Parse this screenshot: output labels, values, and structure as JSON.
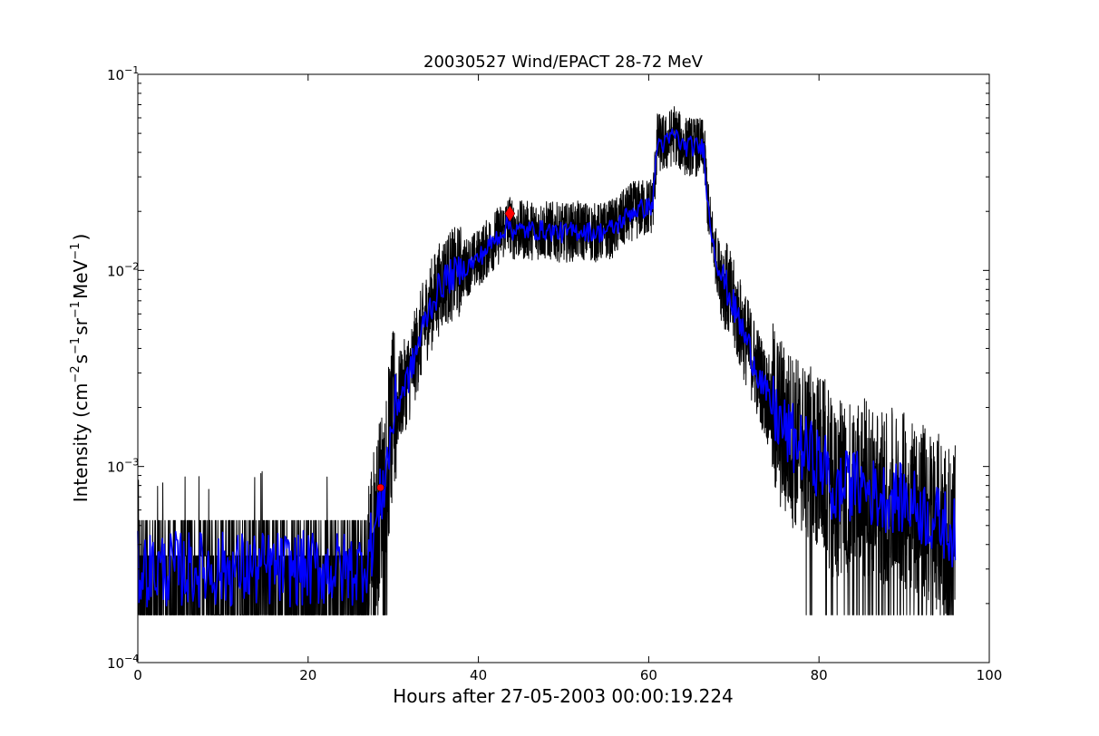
{
  "chart_data": {
    "type": "line",
    "title": "20030527 Wind/EPACT 28-72 MeV",
    "xlabel": "Hours after 27-05-2003 00:00:19.224",
    "ylabel": {
      "prefix": "Intensity (cm",
      "e1": "−2",
      "p2": "s",
      "e2": "−1",
      "p3": "sr",
      "e3": "−1",
      "p4": "MeV",
      "e4": "−1",
      "suffix": ")"
    },
    "xlim": [
      0,
      100
    ],
    "ylim": [
      0.0001,
      0.1
    ],
    "yscale": "log",
    "grid": false,
    "x_ticks": [
      {
        "value": 0,
        "label": "0"
      },
      {
        "value": 20,
        "label": "20"
      },
      {
        "value": 40,
        "label": "40"
      },
      {
        "value": 60,
        "label": "60"
      },
      {
        "value": 80,
        "label": "80"
      },
      {
        "value": 100,
        "label": "100"
      }
    ],
    "y_ticks": [
      {
        "value": 0.0001,
        "base": "10",
        "exp": "−4"
      },
      {
        "value": 0.001,
        "base": "10",
        "exp": "−3"
      },
      {
        "value": 0.01,
        "base": "10",
        "exp": "−2"
      },
      {
        "value": 0.1,
        "base": "10",
        "exp": "−1"
      }
    ],
    "series": [
      {
        "color": "#000000",
        "style": "raw",
        "x": [
          0,
          2,
          4,
          6,
          8,
          10,
          12,
          14,
          16,
          18,
          20,
          22,
          24,
          26,
          27,
          28,
          28.8,
          29.5,
          30,
          31,
          32,
          33,
          34,
          35,
          36,
          38,
          40,
          42,
          43.7,
          44,
          46,
          48,
          50,
          52,
          54,
          56,
          58,
          60,
          60.5,
          61,
          62,
          63,
          64,
          65,
          66.5,
          67,
          68,
          69,
          70,
          72,
          74,
          76,
          78,
          80,
          81,
          81.6,
          83,
          85,
          87,
          89,
          91,
          93,
          95,
          96
        ],
        "y": [
          0.0003,
          0.0003,
          0.0003,
          0.0003,
          0.0003,
          0.0003,
          0.0003,
          0.0003,
          0.0003,
          0.0003,
          0.0003,
          0.0003,
          0.0003,
          0.0003,
          0.00035,
          0.0005,
          0.0008,
          0.0012,
          0.0018,
          0.0024,
          0.003,
          0.0043,
          0.006,
          0.0075,
          0.009,
          0.01,
          0.0115,
          0.0145,
          0.0175,
          0.016,
          0.016,
          0.016,
          0.0155,
          0.016,
          0.0155,
          0.0165,
          0.02,
          0.021,
          0.022,
          0.045,
          0.044,
          0.05,
          0.043,
          0.043,
          0.042,
          0.02,
          0.011,
          0.0085,
          0.0065,
          0.0038,
          0.0022,
          0.0015,
          0.00125,
          0.00105,
          0.00095,
          0.0007,
          0.0008,
          0.0008,
          0.0007,
          0.0007,
          0.00065,
          0.00055,
          0.0005,
          0.00045
        ]
      },
      {
        "color": "#0000ff",
        "style": "smoothed",
        "x": [
          0,
          2,
          4,
          6,
          8,
          10,
          12,
          14,
          16,
          18,
          20,
          22,
          24,
          26,
          27,
          28,
          28.8,
          29.5,
          30,
          31,
          32,
          33,
          34,
          35,
          36,
          38,
          40,
          42,
          43.7,
          44,
          46,
          48,
          50,
          52,
          54,
          56,
          58,
          60,
          60.5,
          61,
          62,
          63,
          64,
          65,
          66.5,
          67,
          68,
          69,
          70,
          72,
          74,
          76,
          78,
          80,
          81,
          81.6,
          83,
          85,
          87,
          89,
          91,
          93,
          95,
          96
        ],
        "y": [
          0.0003,
          0.0003,
          0.0003,
          0.0003,
          0.0003,
          0.0003,
          0.0003,
          0.0003,
          0.0003,
          0.0003,
          0.0003,
          0.0003,
          0.0003,
          0.0003,
          0.00035,
          0.0005,
          0.0008,
          0.0012,
          0.0018,
          0.0024,
          0.003,
          0.0043,
          0.006,
          0.0075,
          0.009,
          0.01,
          0.0115,
          0.0145,
          0.0175,
          0.016,
          0.016,
          0.016,
          0.0155,
          0.016,
          0.0155,
          0.0165,
          0.02,
          0.021,
          0.022,
          0.045,
          0.044,
          0.05,
          0.043,
          0.043,
          0.042,
          0.02,
          0.011,
          0.0085,
          0.0065,
          0.0038,
          0.0022,
          0.0015,
          0.00125,
          0.00105,
          0.00095,
          0.0007,
          0.0008,
          0.0008,
          0.0007,
          0.0007,
          0.00065,
          0.00055,
          0.0005,
          0.00045
        ]
      }
    ],
    "markers": [
      {
        "x": 28.5,
        "y": 0.00078,
        "shape": "circle",
        "color": "#ff0000"
      },
      {
        "x": 43.7,
        "y": 0.0195,
        "shape": "diamond",
        "color": "#ff0000"
      }
    ],
    "noise": {
      "floor": 0.000175,
      "quantized_levels": [
        0.000175,
        0.00035,
        0.00053
      ],
      "baseline_end_hour": 28.5,
      "data_gap_hours": [
        81.6,
        82
      ]
    }
  }
}
